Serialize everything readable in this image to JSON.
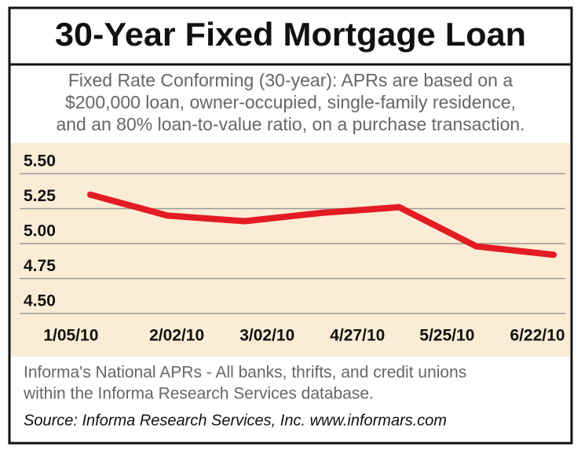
{
  "chart_data": {
    "type": "line",
    "title": "30-Year Fixed Mortgage Loan",
    "subtitle_lines": [
      "Fixed Rate Conforming (30-year): APRs are based on a",
      "$200,000 loan, owner-occupied, single-family residence,",
      "and an 80% loan-to-value ratio, on a purchase transaction."
    ],
    "note_lines": [
      "Informa's National APRs - All banks, thrifts, and credit unions",
      "within the Informa Research Services database."
    ],
    "source": "Source: Informa Research Services, Inc. www.informars.com",
    "x": [
      0,
      1,
      2,
      3,
      4,
      5,
      6
    ],
    "values": [
      5.35,
      5.2,
      5.16,
      5.22,
      5.26,
      4.98,
      4.92
    ],
    "color": "#e31b23",
    "xlim": [
      -0.65,
      6.15
    ],
    "xticks": [
      {
        "value": -0.25,
        "label": "1/05/10"
      },
      {
        "value": 1.12,
        "label": "2/02/10"
      },
      {
        "value": 2.29,
        "label": "3/02/10"
      },
      {
        "value": 3.46,
        "label": "4/27/10"
      },
      {
        "value": 4.62,
        "label": "5/25/10"
      },
      {
        "value": 5.79,
        "label": "6/22/10"
      }
    ],
    "ylim": [
      4.5,
      5.5
    ],
    "yticks": [
      {
        "value": 5.5,
        "label": "5.50"
      },
      {
        "value": 5.25,
        "label": "5.25"
      },
      {
        "value": 5,
        "label": "5.00"
      },
      {
        "value": 4.75,
        "label": "4.75"
      },
      {
        "value": 4.5,
        "label": "4.50"
      }
    ],
    "grid": true
  }
}
